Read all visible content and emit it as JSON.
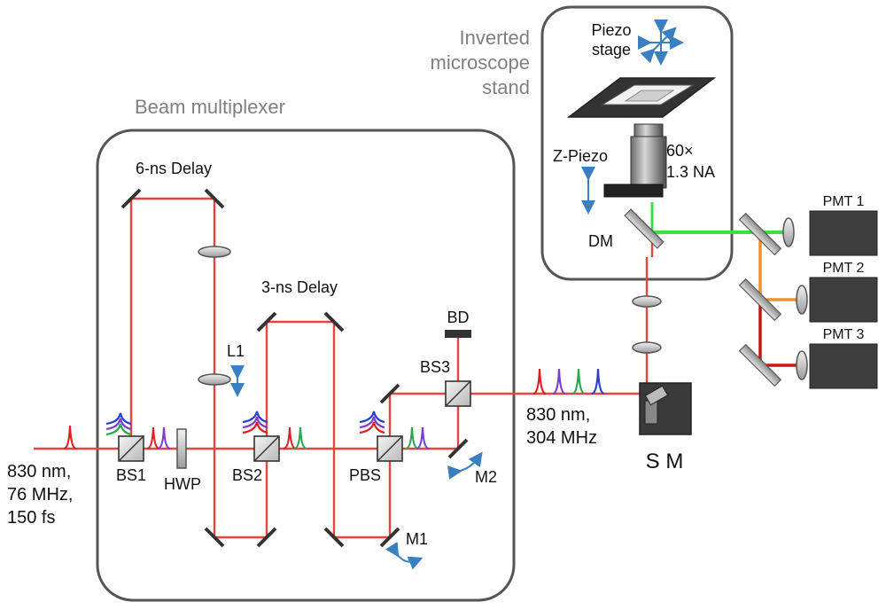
{
  "groups": {
    "beam_multiplexer": "Beam multiplexer",
    "inverted_microscope": [
      "Inverted",
      "microscope",
      "stand"
    ]
  },
  "delays": {
    "six_ns": "6-ns Delay",
    "three_ns": "3-ns Delay"
  },
  "input_beam": [
    "830 nm,",
    "76 MHz,",
    "150 fs"
  ],
  "output_beam": [
    "830 nm,",
    "304 MHz"
  ],
  "components": {
    "bs1": "BS1",
    "hwp": "HWP",
    "bs2": "BS2",
    "pbs": "PBS",
    "bs3": "BS3",
    "bd": "BD",
    "l1": "L1",
    "m1": "M1",
    "m2": "M2",
    "sm": "S M",
    "dm": "DM",
    "piezo_stage": [
      "Piezo",
      "stage"
    ],
    "z_piezo": "Z-Piezo",
    "objective": [
      "60×",
      "1.3 NA"
    ],
    "pmt1": "PMT 1",
    "pmt2": "PMT 2",
    "pmt3": "PMT 3"
  },
  "colors": {
    "beam": "#e8433f",
    "pulse_red": "#e02020",
    "pulse_purple": "#7a3fd0",
    "pulse_green": "#2aa84a",
    "pulse_blue": "#2a3fd0",
    "fluor_green": "#3fdc4a",
    "fluor_orange": "#f0902a",
    "fluor_red": "#c81414",
    "box": "#555555",
    "arrow": "#3a7fc0"
  }
}
